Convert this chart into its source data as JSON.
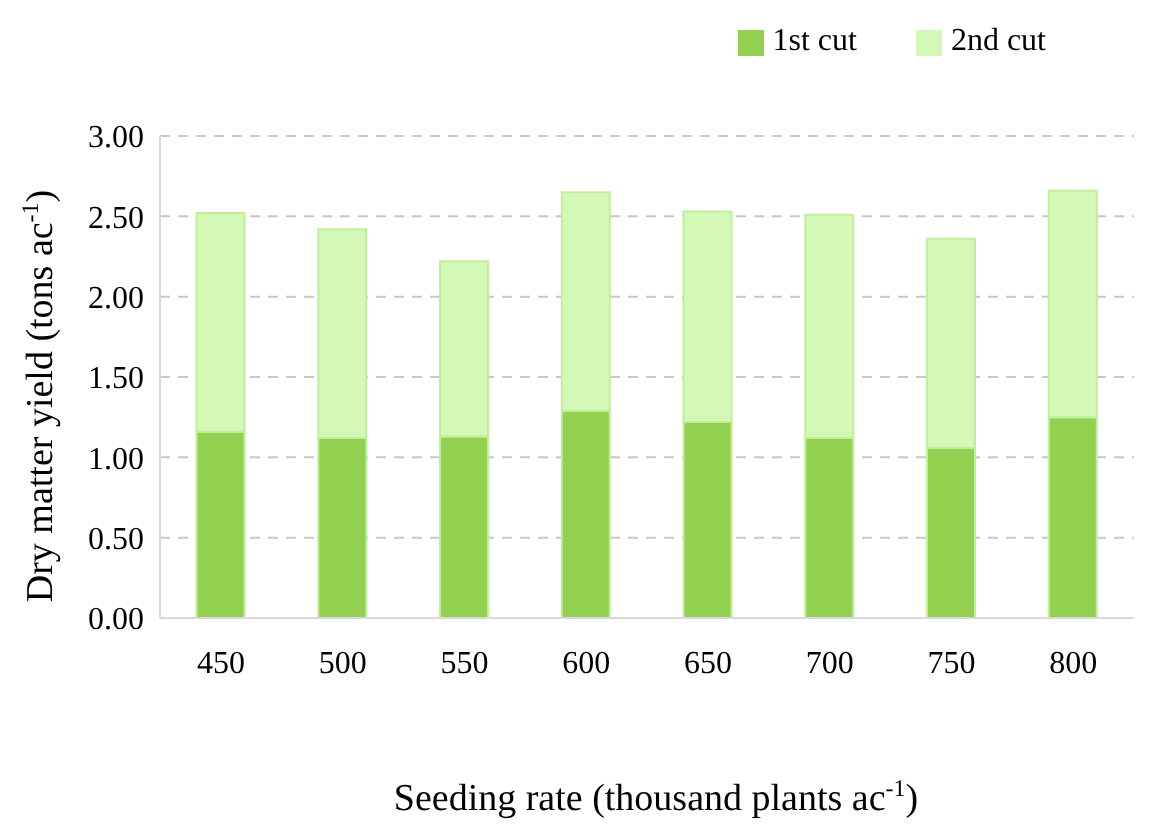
{
  "chart_data": {
    "type": "bar",
    "stacked": true,
    "xlabel": "Seeding rate (thousand plants ac$^{-1}$)",
    "ylabel": "Dry matter yield (tons ac$^{-1}$)",
    "categories": [
      "450",
      "500",
      "550",
      "600",
      "650",
      "700",
      "750",
      "800"
    ],
    "series": [
      {
        "name": "1st cut",
        "color": "#92d050",
        "values": [
          1.16,
          1.12,
          1.13,
          1.29,
          1.22,
          1.12,
          1.06,
          1.25
        ]
      },
      {
        "name": "2nd cut",
        "color": "#d4f8b6",
        "values": [
          1.36,
          1.3,
          1.09,
          1.36,
          1.31,
          1.39,
          1.3,
          1.41
        ]
      }
    ],
    "ylim": [
      0,
      3
    ],
    "yticks": [
      {
        "value": 0,
        "label": "0.00"
      },
      {
        "value": 0.5,
        "label": "0.50"
      },
      {
        "value": 1,
        "label": "1.00"
      },
      {
        "value": 1.5,
        "label": "1.50"
      },
      {
        "value": 2,
        "label": "2.00"
      },
      {
        "value": 2.5,
        "label": "2.50"
      },
      {
        "value": 3,
        "label": "3.00"
      }
    ],
    "grid": "y",
    "legend": "top right"
  }
}
